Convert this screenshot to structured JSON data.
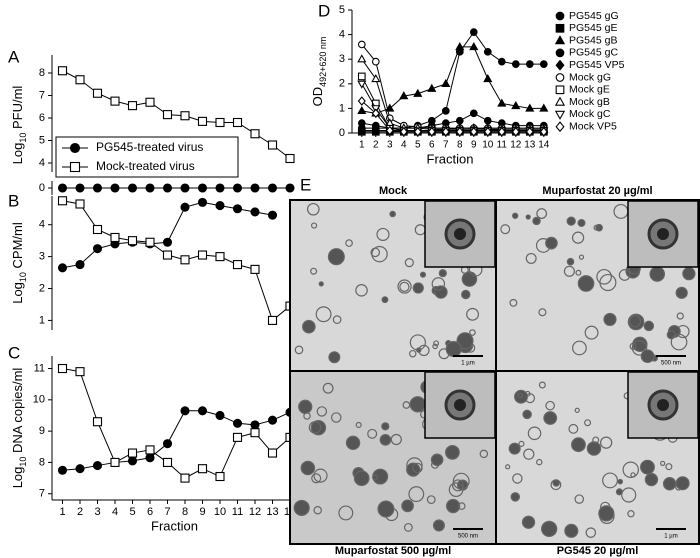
{
  "chart_data": [
    {
      "type": "line",
      "panel": "A",
      "ylabel": {
        "text": "Log",
        "sub": "10",
        "rest": " PFU/ml"
      },
      "x": [
        1,
        2,
        3,
        4,
        5,
        6,
        7,
        8,
        9,
        10,
        11,
        12,
        13,
        14
      ],
      "xlim": [
        0.4,
        14.4
      ],
      "ylim": [
        3.6,
        8.8
      ],
      "yticks": [
        4,
        5,
        6,
        7,
        8
      ],
      "y_lower": {
        "ylim": [
          -0.3,
          0.3
        ],
        "yticks": [
          0
        ]
      },
      "legend": "lower-left",
      "series": [
        {
          "name": "PG545-treated virus",
          "color": "#000000",
          "marker": "circle",
          "filled": true,
          "values": [
            0,
            0,
            0,
            0,
            0,
            0,
            0,
            0,
            0,
            0,
            0,
            0,
            0,
            0
          ]
        },
        {
          "name": "Mock-treated virus",
          "color": "#000000",
          "marker": "square",
          "filled": false,
          "values": [
            8.1,
            7.7,
            7.1,
            6.75,
            6.55,
            6.7,
            6.15,
            6.1,
            5.85,
            5.8,
            5.8,
            5.3,
            4.8,
            4.2
          ]
        }
      ]
    },
    {
      "type": "line",
      "panel": "B",
      "ylabel": {
        "text": "Log",
        "sub": "10",
        "rest": " CPM/ml"
      },
      "x": [
        1,
        2,
        3,
        4,
        5,
        6,
        7,
        8,
        9,
        10,
        11,
        12,
        13,
        14
      ],
      "xlim": [
        0.4,
        14.4
      ],
      "ylim": [
        0.7,
        4.9
      ],
      "yticks": [
        1,
        2,
        3,
        4
      ],
      "series": [
        {
          "name": "PG545-treated virus",
          "color": "#000000",
          "marker": "circle",
          "filled": true,
          "values": [
            2.65,
            2.75,
            3.25,
            3.4,
            3.45,
            3.4,
            3.45,
            4.55,
            4.7,
            4.6,
            4.5,
            4.4,
            4.3,
            null
          ]
        },
        {
          "name": "Mock-treated virus",
          "color": "#000000",
          "marker": "square",
          "filled": false,
          "values": [
            4.75,
            4.65,
            3.85,
            3.6,
            3.5,
            3.45,
            3.05,
            2.9,
            3.05,
            3.0,
            2.75,
            2.6,
            1.0,
            1.45
          ]
        }
      ]
    },
    {
      "type": "line",
      "panel": "C",
      "ylabel": {
        "text": "Log",
        "sub": "10",
        "rest": " DNA copies/ml"
      },
      "x": [
        1,
        2,
        3,
        4,
        5,
        6,
        7,
        8,
        9,
        10,
        11,
        12,
        13,
        14
      ],
      "xlim": [
        0.4,
        14.4
      ],
      "xticks": [
        1,
        2,
        3,
        4,
        5,
        6,
        7,
        8,
        9,
        10,
        11,
        12,
        13,
        14
      ],
      "xlabel": "Fraction",
      "ylim": [
        6.8,
        11.4
      ],
      "yticks": [
        7,
        8,
        9,
        10,
        11
      ],
      "series": [
        {
          "name": "PG545-treated virus",
          "color": "#000000",
          "marker": "circle",
          "filled": true,
          "values": [
            7.75,
            7.8,
            7.9,
            8.0,
            8.05,
            8.15,
            8.6,
            9.65,
            9.65,
            9.5,
            9.25,
            9.2,
            9.35,
            9.6
          ]
        },
        {
          "name": "Mock-treated virus",
          "color": "#000000",
          "marker": "square",
          "filled": false,
          "values": [
            11.0,
            10.9,
            9.3,
            8.0,
            8.3,
            8.4,
            8.0,
            7.5,
            7.8,
            7.55,
            8.8,
            8.95,
            8.3,
            8.8
          ]
        }
      ]
    },
    {
      "type": "line",
      "panel": "D",
      "ylabel": {
        "text": "OD",
        "sub": "492+620 nm",
        "rest": ""
      },
      "x": [
        1,
        2,
        3,
        4,
        5,
        6,
        7,
        8,
        9,
        10,
        11,
        12,
        13,
        14
      ],
      "xlim": [
        0.3,
        14.3
      ],
      "xticks": [
        1,
        2,
        3,
        4,
        5,
        6,
        7,
        8,
        9,
        10,
        11,
        12,
        13,
        14
      ],
      "xlabel": "Fraction",
      "ylim": [
        0,
        5
      ],
      "yticks": [
        0,
        1,
        2,
        3,
        4,
        5
      ],
      "legend": "right",
      "series": [
        {
          "name": "PG545 gG",
          "color": "#000000",
          "marker": "circle",
          "filled": true,
          "values": [
            0.4,
            0.3,
            0.2,
            0.2,
            0.3,
            0.5,
            0.9,
            3.3,
            4.1,
            3.3,
            2.9,
            2.8,
            2.8,
            2.8
          ]
        },
        {
          "name": "PG545 gE",
          "color": "#000000",
          "marker": "square",
          "filled": true,
          "values": [
            0.05,
            0.05,
            0.05,
            0.05,
            0.05,
            0.05,
            0.05,
            0.05,
            0.05,
            0.05,
            0.05,
            0.05,
            0.05,
            0.05
          ]
        },
        {
          "name": "PG545 gB",
          "color": "#000000",
          "marker": "triangle",
          "filled": true,
          "values": [
            0.9,
            0.8,
            1.0,
            1.5,
            1.6,
            1.8,
            2.0,
            3.5,
            3.5,
            2.2,
            1.2,
            1.1,
            1.0,
            1.0
          ]
        },
        {
          "name": "PG545 gC",
          "color": "#000000",
          "marker": "circle",
          "filled": true,
          "values": [
            0.2,
            0.2,
            0.2,
            0.2,
            0.2,
            0.3,
            0.4,
            0.5,
            0.8,
            0.5,
            0.4,
            0.3,
            0.3,
            0.3
          ]
        },
        {
          "name": "PG545 VP5",
          "color": "#000000",
          "marker": "diamond",
          "filled": true,
          "values": [
            0.1,
            0.1,
            0.1,
            0.1,
            0.1,
            0.1,
            0.15,
            0.2,
            0.2,
            0.15,
            0.1,
            0.1,
            0.1,
            0.1
          ]
        },
        {
          "name": "Mock gG",
          "color": "#000000",
          "marker": "circle",
          "filled": false,
          "values": [
            3.6,
            2.9,
            0.6,
            0.3,
            0.25,
            0.2,
            0.2,
            0.2,
            0.2,
            0.2,
            0.2,
            0.2,
            0.2,
            0.2
          ]
        },
        {
          "name": "Mock gE",
          "color": "#000000",
          "marker": "square",
          "filled": false,
          "values": [
            2.3,
            1.2,
            0.2,
            0.1,
            0.1,
            0.1,
            0.1,
            0.1,
            0.1,
            0.1,
            0.1,
            0.1,
            0.1,
            0.1
          ]
        },
        {
          "name": "Mock gB",
          "color": "#000000",
          "marker": "triangle",
          "filled": false,
          "values": [
            3.0,
            2.2,
            0.4,
            0.2,
            0.2,
            0.15,
            0.15,
            0.15,
            0.15,
            0.15,
            0.15,
            0.15,
            0.15,
            0.15
          ]
        },
        {
          "name": "Mock gC",
          "color": "#000000",
          "marker": "triangle-down",
          "filled": false,
          "values": [
            2.0,
            1.0,
            0.2,
            0.1,
            0.1,
            0.1,
            0.1,
            0.1,
            0.1,
            0.1,
            0.1,
            0.1,
            0.1,
            0.1
          ]
        },
        {
          "name": "Mock VP5",
          "color": "#000000",
          "marker": "diamond",
          "filled": false,
          "values": [
            1.3,
            0.8,
            0.1,
            0.05,
            0.05,
            0.05,
            0.05,
            0.05,
            0.05,
            0.05,
            0.05,
            0.05,
            0.05,
            0.05
          ]
        }
      ]
    }
  ],
  "micrographs": {
    "panel": "E",
    "images": [
      {
        "caption": "Mock",
        "scale": "1 µm"
      },
      {
        "caption": "Muparfostat 20 µg/ml",
        "scale": "500 nm"
      },
      {
        "caption": "Muparfostat 500 µg/ml",
        "scale": "500 nm"
      },
      {
        "caption": "PG545 20 µg/ml",
        "scale": "1 µm"
      }
    ]
  }
}
